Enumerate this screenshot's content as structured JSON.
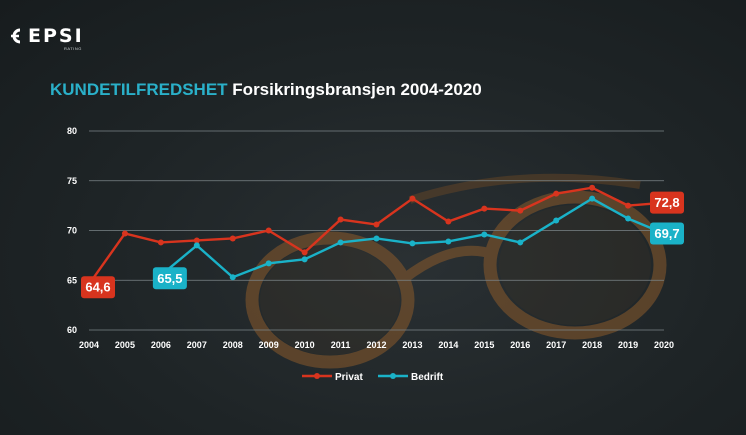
{
  "logo": {
    "text": "EPSI",
    "subtext": "RATING"
  },
  "title": {
    "accent": "KUNDETILFREDSHET",
    "rest": "Forsikringsbransjen 2004-2020"
  },
  "chart_data": {
    "type": "line",
    "x": [
      "2004",
      "2005",
      "2006",
      "2007",
      "2008",
      "2009",
      "2010",
      "2011",
      "2012",
      "2013",
      "2014",
      "2015",
      "2016",
      "2017",
      "2018",
      "2019",
      "2020"
    ],
    "ylim": [
      60,
      80
    ],
    "yticks": [
      "60",
      "65",
      "70",
      "75",
      "80"
    ],
    "grid": true,
    "legend_position": "bottom",
    "series": [
      {
        "name": "Privat",
        "color": "#d8341e",
        "values": [
          64.6,
          69.7,
          68.8,
          69.0,
          69.2,
          70.0,
          67.8,
          71.1,
          70.6,
          73.2,
          70.9,
          72.2,
          72.0,
          73.7,
          74.3,
          72.5,
          72.8
        ],
        "start_label": "64,6",
        "end_label": "72,8"
      },
      {
        "name": "Bedrift",
        "color": "#1ab2c8",
        "values": [
          null,
          null,
          65.5,
          68.5,
          65.3,
          66.7,
          67.1,
          68.8,
          69.2,
          68.7,
          68.9,
          69.6,
          68.8,
          71.0,
          73.2,
          71.2,
          69.7
        ],
        "start_label": "65,5",
        "end_label": "69,7"
      }
    ]
  }
}
